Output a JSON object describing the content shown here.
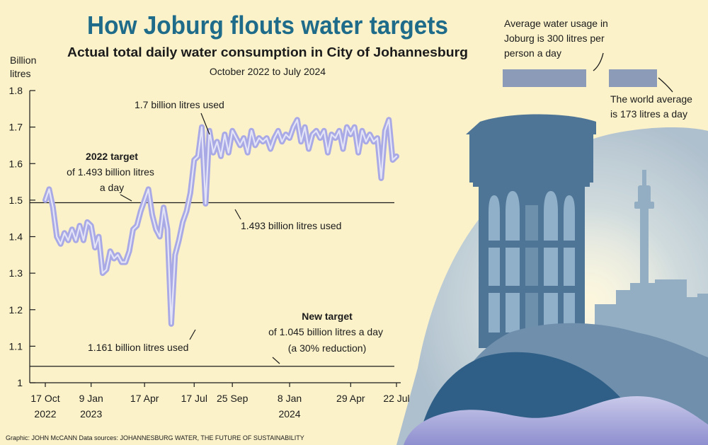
{
  "title": "How Joburg flouts water targets",
  "subtitle": "Actual total daily water consumption in City of Johannesburg",
  "period": "October 2022 to July 2024",
  "credit": "Graphic: JOHN McCANN  Data sources: JOHANNESBURG WATER, THE FUTURE OF SUSTAINABILITY",
  "colors": {
    "title": "#1f6b8a",
    "line": "#a9a9e6",
    "line_glow": "#e4e4f7",
    "bar": "#8c9cb8",
    "silhouette": "#3d6a8e",
    "sky": "#b9cbd8",
    "background": "#fbf2c9"
  },
  "comparison": {
    "joburg_text_lines": [
      "Average water usage in",
      "Joburg is 300 litres per",
      "person a day"
    ],
    "world_text_lines": [
      "The world average",
      "is 173 litres a day"
    ],
    "joburg_litres": 300,
    "world_litres": 173
  },
  "chart_data": {
    "type": "line",
    "ylabel_lines": [
      "Billion",
      "litres"
    ],
    "ylim": [
      1.0,
      1.8
    ],
    "yticks": [
      1,
      1.1,
      1.2,
      1.3,
      1.4,
      1.5,
      1.6,
      1.7,
      1.8
    ],
    "ytick_labels": [
      "1",
      "1.1",
      "1.2",
      "1.3",
      "1.4",
      "1.5",
      "1.6",
      "1.7",
      "1.8"
    ],
    "xlim": [
      "2022-10-17",
      "2024-07-22"
    ],
    "xticks": [
      {
        "date": "2022-10-17",
        "lines": [
          "17 Oct",
          "2022"
        ]
      },
      {
        "date": "2023-01-09",
        "lines": [
          "9 Jan",
          "2023"
        ]
      },
      {
        "date": "2023-04-17",
        "lines": [
          "17 Apr"
        ]
      },
      {
        "date": "2023-07-17",
        "lines": [
          "17 Jul"
        ]
      },
      {
        "date": "2023-09-25",
        "lines": [
          "25 Sep"
        ]
      },
      {
        "date": "2024-01-08",
        "lines": [
          "8 Jan",
          "2024"
        ]
      },
      {
        "date": "2024-04-29",
        "lines": [
          "29 Apr"
        ]
      },
      {
        "date": "2024-07-22",
        "lines": [
          "22 Jul"
        ]
      }
    ],
    "grid": false,
    "reference_lines": [
      {
        "value": 1.493,
        "title": "2022 target",
        "text_lines": [
          "of 1.493 billion litres",
          "a day"
        ]
      },
      {
        "value": 1.045,
        "title": "New target",
        "text_lines": [
          "of 1.045 billion litres a day",
          "(a 30% reduction)"
        ]
      }
    ],
    "annotations": [
      {
        "text": "1.7 billion litres used",
        "date": "2023-09-25",
        "value": 1.7
      },
      {
        "text": "1.493 billion litres used",
        "date": "2023-10-02",
        "value": 1.493
      },
      {
        "text": "1.161 billion litres used",
        "date": "2023-07-17",
        "value": 1.161
      }
    ],
    "series": [
      {
        "x": [
          "2022-10-17",
          "2022-10-24",
          "2022-10-31",
          "2022-11-07",
          "2022-11-14",
          "2022-11-21",
          "2022-11-28",
          "2022-12-05",
          "2022-12-12",
          "2022-12-19",
          "2022-12-26",
          "2023-01-02",
          "2023-01-09",
          "2023-01-16",
          "2023-01-23",
          "2023-01-30",
          "2023-02-06",
          "2023-02-13",
          "2023-02-20",
          "2023-02-27",
          "2023-03-06",
          "2023-03-13",
          "2023-03-20",
          "2023-03-27",
          "2023-04-03",
          "2023-04-10",
          "2023-04-17",
          "2023-04-24",
          "2023-05-01",
          "2023-05-08",
          "2023-05-15",
          "2023-05-22",
          "2023-05-29",
          "2023-06-05",
          "2023-06-12",
          "2023-06-19",
          "2023-06-26",
          "2023-07-03",
          "2023-07-10",
          "2023-07-17",
          "2023-07-24",
          "2023-07-31",
          "2023-08-07",
          "2023-08-14",
          "2023-08-21",
          "2023-08-28",
          "2023-09-04",
          "2023-09-11",
          "2023-09-18",
          "2023-09-25",
          "2023-10-02",
          "2023-10-09",
          "2023-10-16",
          "2023-10-23",
          "2023-10-30",
          "2023-11-06",
          "2023-11-13",
          "2023-11-20",
          "2023-11-27",
          "2023-12-04",
          "2023-12-11",
          "2023-12-18",
          "2023-12-25",
          "2024-01-01",
          "2024-01-08",
          "2024-01-15",
          "2024-01-22",
          "2024-01-29",
          "2024-02-05",
          "2024-02-12",
          "2024-02-19",
          "2024-02-26",
          "2024-03-04",
          "2024-03-11",
          "2024-03-18",
          "2024-03-25",
          "2024-04-01",
          "2024-04-08",
          "2024-04-15",
          "2024-04-22",
          "2024-04-29",
          "2024-05-06",
          "2024-05-13",
          "2024-05-20",
          "2024-05-27",
          "2024-06-03",
          "2024-06-10",
          "2024-06-17",
          "2024-06-24",
          "2024-07-01",
          "2024-07-08",
          "2024-07-15",
          "2024-07-22"
        ],
        "y": [
          1.5,
          1.53,
          1.48,
          1.4,
          1.38,
          1.41,
          1.39,
          1.42,
          1.39,
          1.43,
          1.39,
          1.44,
          1.43,
          1.37,
          1.4,
          1.3,
          1.31,
          1.36,
          1.34,
          1.35,
          1.33,
          1.33,
          1.36,
          1.42,
          1.43,
          1.47,
          1.5,
          1.53,
          1.46,
          1.42,
          1.4,
          1.48,
          1.42,
          1.161,
          1.35,
          1.39,
          1.44,
          1.47,
          1.52,
          1.61,
          1.62,
          1.7,
          1.49,
          1.69,
          1.63,
          1.66,
          1.62,
          1.68,
          1.63,
          1.69,
          1.67,
          1.65,
          1.67,
          1.63,
          1.69,
          1.65,
          1.67,
          1.66,
          1.67,
          1.64,
          1.67,
          1.69,
          1.66,
          1.68,
          1.67,
          1.7,
          1.72,
          1.66,
          1.7,
          1.64,
          1.68,
          1.69,
          1.67,
          1.69,
          1.63,
          1.68,
          1.67,
          1.69,
          1.64,
          1.7,
          1.68,
          1.7,
          1.63,
          1.69,
          1.66,
          1.68,
          1.66,
          1.67,
          1.56,
          1.69,
          1.72,
          1.61,
          1.62
        ]
      }
    ]
  }
}
